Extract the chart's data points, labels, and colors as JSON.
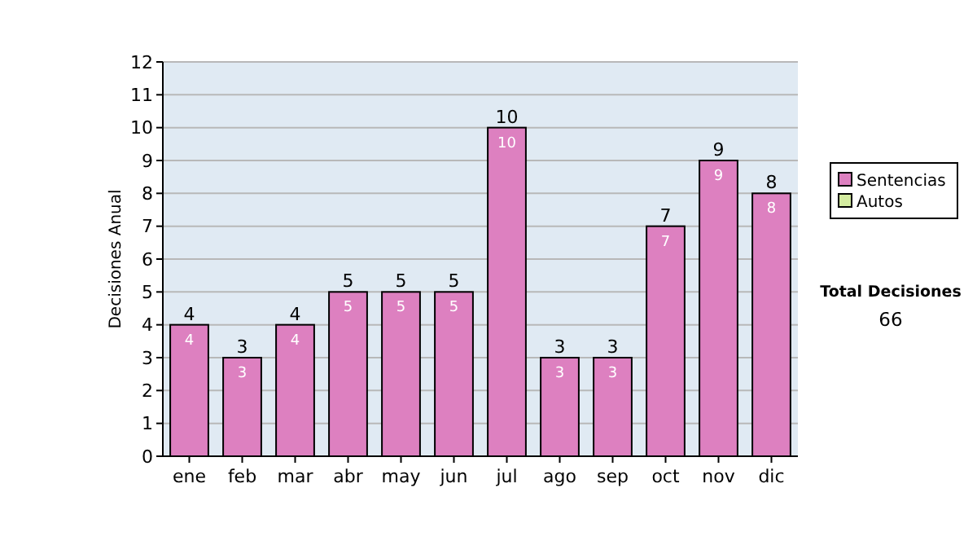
{
  "chart_data": {
    "type": "bar",
    "stacked": true,
    "ylabel": "Decisiones Anual",
    "categories": [
      "ene",
      "feb",
      "mar",
      "abr",
      "may",
      "jun",
      "jul",
      "ago",
      "sep",
      "oct",
      "nov",
      "dic"
    ],
    "series": [
      {
        "name": "Sentencias",
        "color": "#dd80c0",
        "values": [
          4,
          3,
          4,
          5,
          5,
          5,
          10,
          3,
          3,
          7,
          9,
          8
        ],
        "value_labels": [
          "4",
          "3",
          "4",
          "5",
          "5",
          "5",
          "10",
          "3",
          "3",
          "7",
          "9",
          "8"
        ]
      },
      {
        "name": "Autos",
        "color": "#d4eca0",
        "values": [
          0,
          0,
          0,
          0,
          0,
          0,
          0,
          0,
          0,
          0,
          0,
          0
        ]
      }
    ],
    "totals": [
      "4",
      "3",
      "4",
      "5",
      "5",
      "5",
      "10",
      "3",
      "3",
      "7",
      "9",
      "8"
    ],
    "ylim": [
      0,
      12
    ],
    "yticks": [
      0,
      1,
      2,
      3,
      4,
      5,
      6,
      7,
      8,
      9,
      10,
      11,
      12
    ],
    "grid": "y",
    "legend": "right",
    "annotations": [
      "Total Decisiones",
      "66"
    ]
  }
}
